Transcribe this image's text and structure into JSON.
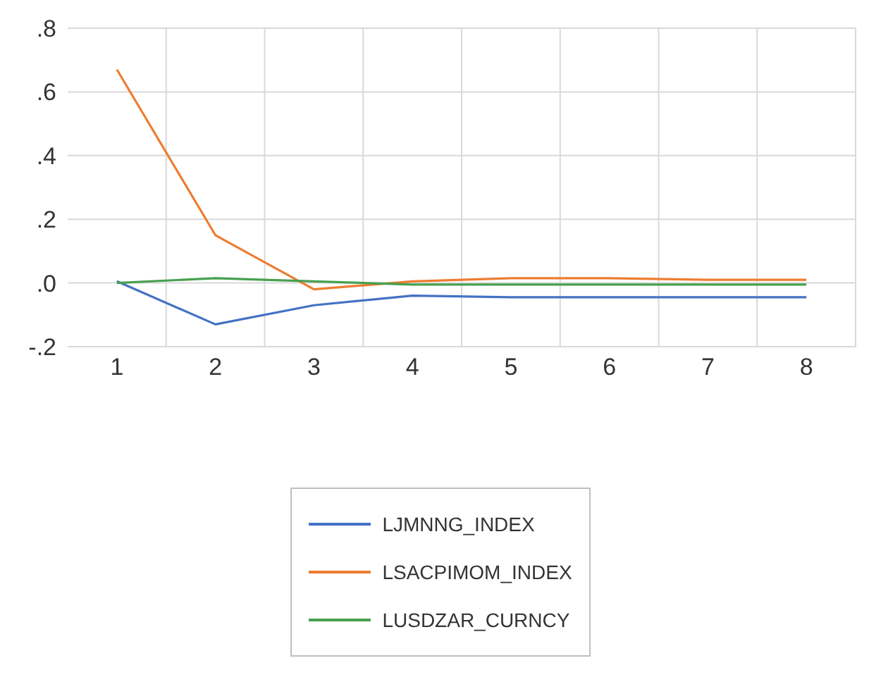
{
  "chart_data": {
    "type": "line",
    "categories": [
      "1",
      "2",
      "3",
      "4",
      "5",
      "6",
      "7",
      "8"
    ],
    "series": [
      {
        "name": "LJMNNG_INDEX",
        "color": "#4472c4",
        "values": [
          0.005,
          -0.13,
          -0.07,
          -0.04,
          -0.045,
          -0.045,
          -0.045,
          -0.045
        ]
      },
      {
        "name": "LSACPIMOM_INDEX",
        "color": "#ed7d31",
        "values": [
          0.67,
          0.15,
          -0.02,
          0.005,
          0.015,
          0.015,
          0.01,
          0.01
        ]
      },
      {
        "name": "LUSDZAR_CURNCY",
        "color": "#47a04f",
        "values": [
          0.0,
          0.015,
          0.005,
          -0.005,
          -0.005,
          -0.005,
          -0.005,
          -0.005
        ]
      }
    ],
    "ylim": [
      -0.2,
      0.8
    ],
    "yticks": [
      {
        "value": -0.2,
        "label": "-.2"
      },
      {
        "value": 0,
        "label": ".0"
      },
      {
        "value": 0.2,
        "label": ".2"
      },
      {
        "value": 0.4,
        "label": ".4"
      },
      {
        "value": 0.6,
        "label": ".6"
      },
      {
        "value": 0.8,
        "label": ".8"
      }
    ],
    "grid": true,
    "legend": "bottom",
    "marker": "none",
    "line_style": "solid"
  }
}
